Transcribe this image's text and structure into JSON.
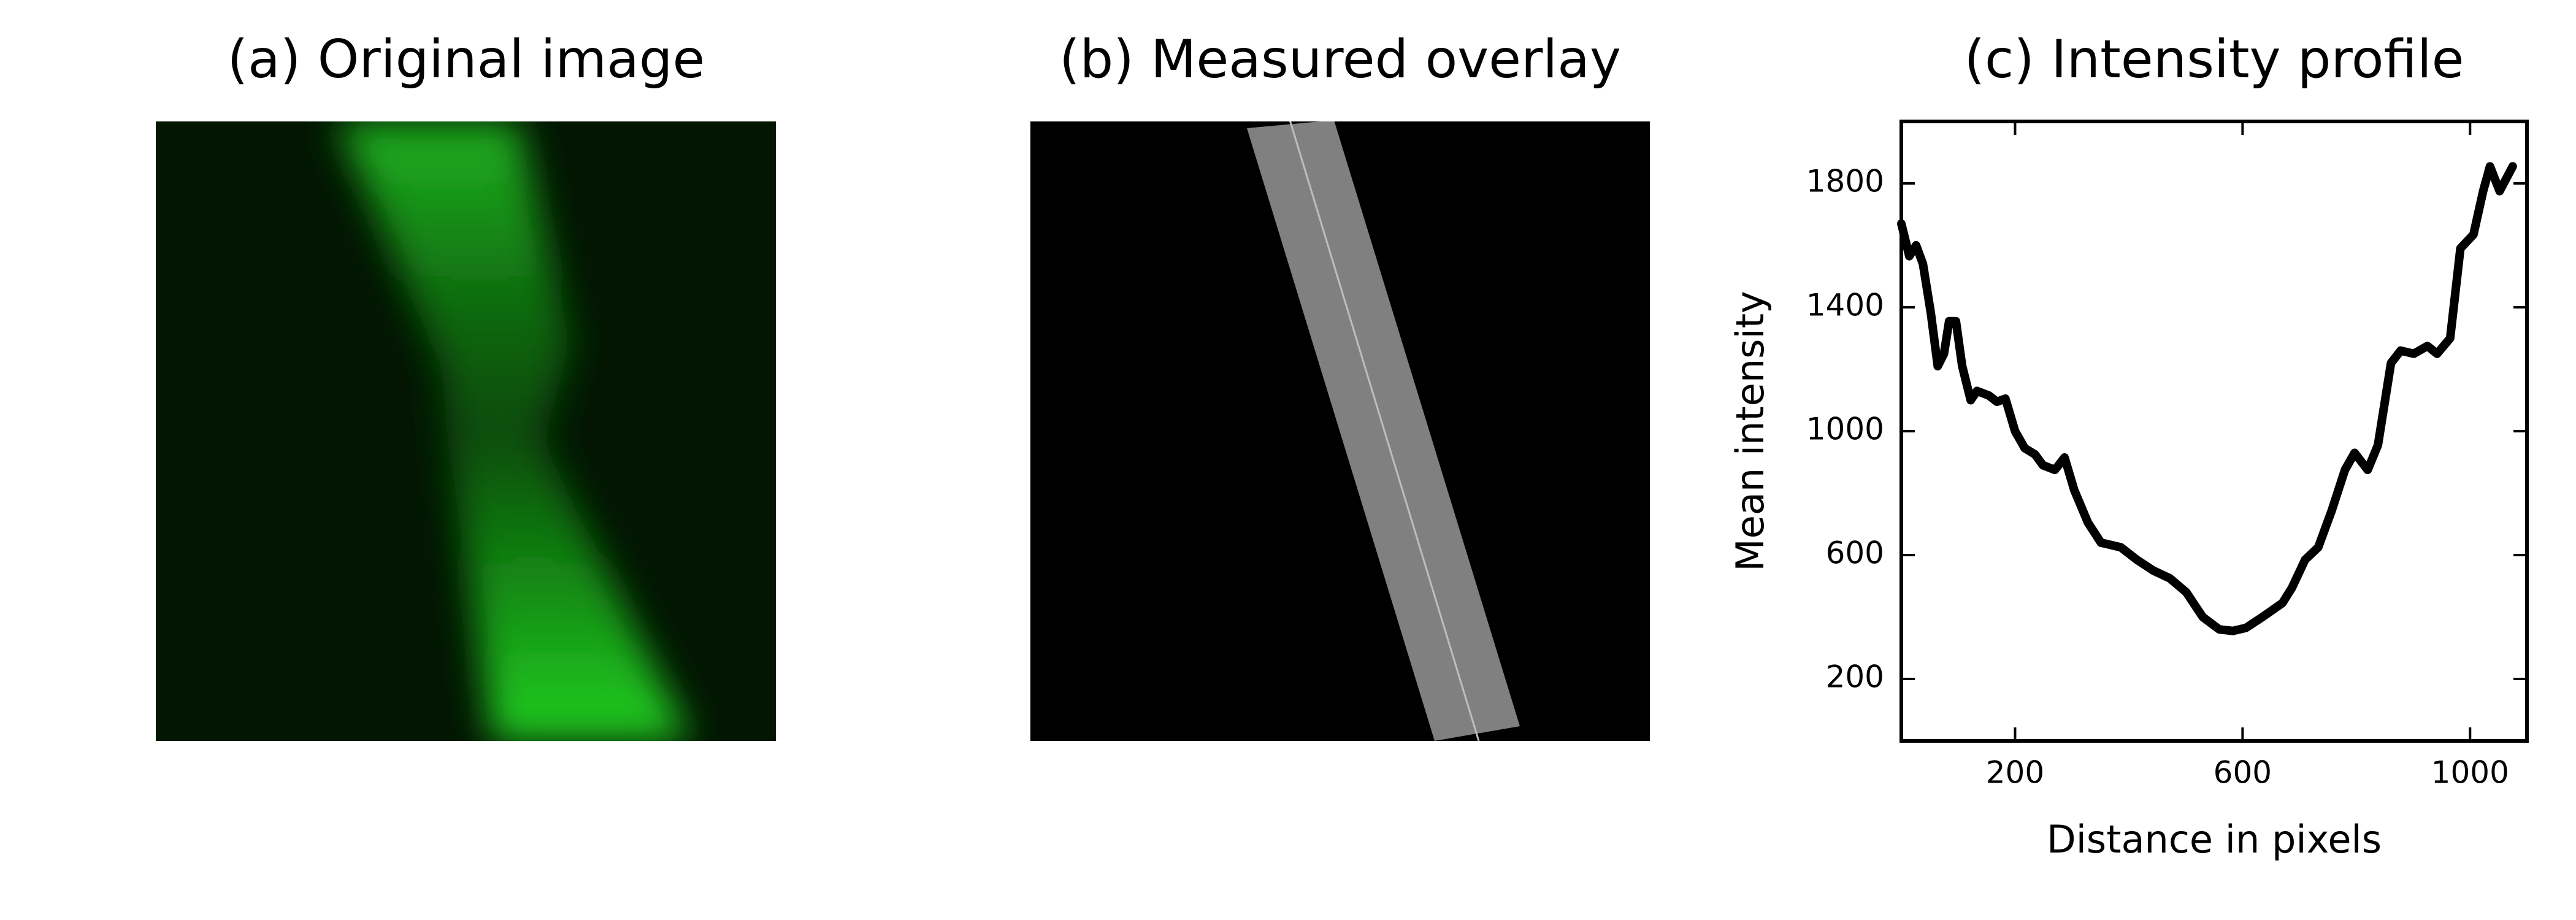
{
  "panels": [
    {
      "title": "(a) Original image"
    },
    {
      "title": "(b) Measured overlay"
    }
  ],
  "chart_data": {
    "type": "line",
    "title": "(c) Intensity profile",
    "xlabel": "Distance in pixels",
    "ylabel": "Mean intensity",
    "x": [
      0,
      14,
      26,
      38,
      52,
      64,
      75,
      84,
      96,
      107,
      122,
      133,
      154,
      168,
      183,
      200,
      217,
      235,
      249,
      270,
      287,
      304,
      328,
      351,
      386,
      414,
      443,
      472,
      501,
      530,
      559,
      583,
      606,
      635,
      670,
      687,
      710,
      733,
      757,
      780,
      797,
      820,
      838,
      861,
      878,
      901,
      925,
      942,
      965,
      983,
      1006,
      1023,
      1035,
      1052,
      1075
    ],
    "values": [
      1670,
      1565,
      1600,
      1540,
      1380,
      1210,
      1250,
      1355,
      1355,
      1210,
      1100,
      1130,
      1115,
      1095,
      1105,
      1000,
      945,
      925,
      890,
      875,
      915,
      810,
      705,
      640,
      625,
      585,
      550,
      525,
      480,
      400,
      360,
      355,
      365,
      400,
      445,
      495,
      585,
      625,
      745,
      875,
      930,
      875,
      955,
      1220,
      1260,
      1250,
      1275,
      1250,
      1300,
      1590,
      1635,
      1775,
      1855,
      1775,
      1855
    ],
    "color": "#000000",
    "xlim": [
      0,
      1100
    ],
    "xticks": [
      200,
      600,
      1000
    ],
    "ylim": [
      0,
      2000
    ],
    "yticks": [
      200,
      600,
      1000,
      1400,
      1800
    ]
  }
}
